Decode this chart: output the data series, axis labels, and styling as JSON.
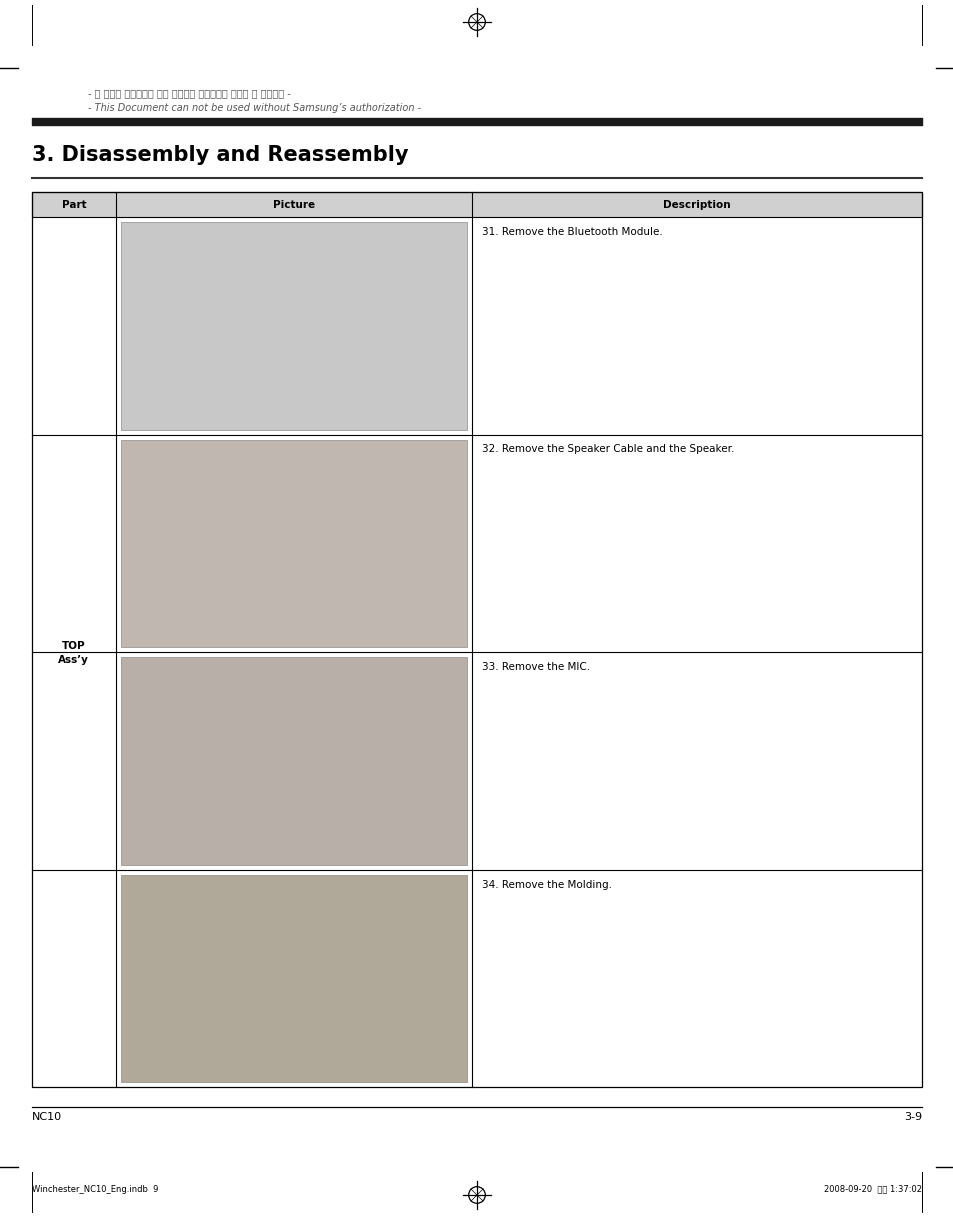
{
  "page_bg": "#ffffff",
  "page_width": 9.54,
  "page_height": 12.17,
  "dpi": 100,
  "korean_text": "- 이 문서는 삼성전자의 기술 자산으로 승인자만이 사용할 수 있습니다 -",
  "english_disclaimer": "- This Document can not be used without Samsung’s authorization -",
  "section_title": "3. Disassembly and Reassembly",
  "col_part": "Part",
  "col_picture": "Picture",
  "col_description": "Description",
  "part_label_line1": "TOP",
  "part_label_line2": "Ass’y",
  "descriptions": [
    "31. Remove the Bluetooth Module.",
    "32. Remove the Speaker Cable and the Speaker.",
    "33. Remove the MIC.",
    "34. Remove the Molding."
  ],
  "footer_left": "NC10",
  "footer_right": "3-9",
  "bottom_left": "Winchester_NC10_Eng.indb  9",
  "bottom_right": "2008-09-20  오후 1:37:02",
  "img_colors": [
    "#c8c8c8",
    "#c0b8b0",
    "#b8b0a8",
    "#b0a898"
  ],
  "header_bg": "#d0d0d0",
  "table_border_color": "#000000",
  "thick_bar_color": "#1a1a1a",
  "thin_bar_color": "#333333"
}
